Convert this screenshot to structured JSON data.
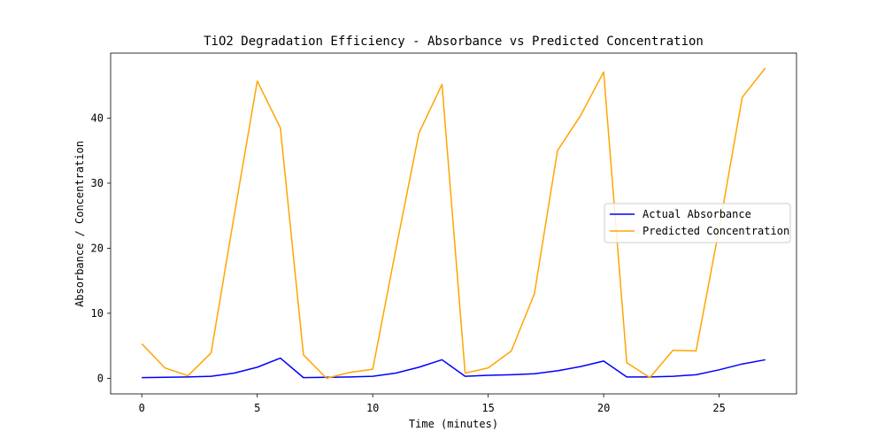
{
  "chart_data": {
    "type": "line",
    "title": "TiO2 Degradation Efficiency - Absorbance vs Predicted Concentration",
    "xlabel": "Time (minutes)",
    "ylabel": "Absorbance / Concentration",
    "xlim": [
      -1.35,
      28.35
    ],
    "ylim": [
      -2.4,
      50.0
    ],
    "x_ticks": [
      0,
      5,
      10,
      15,
      20,
      25
    ],
    "y_ticks": [
      0,
      10,
      20,
      30,
      40
    ],
    "grid": false,
    "legend_position": "center-right",
    "x": [
      0,
      1,
      2,
      3,
      4,
      5,
      6,
      7,
      8,
      9,
      10,
      11,
      12,
      13,
      14,
      15,
      16,
      17,
      18,
      19,
      20,
      21,
      22,
      23,
      24,
      25,
      26,
      27
    ],
    "series": [
      {
        "name": "Actual Absorbance",
        "color": "#0000ff",
        "values": [
          0.1,
          0.15,
          0.2,
          0.3,
          0.8,
          1.7,
          3.1,
          0.1,
          0.15,
          0.2,
          0.3,
          0.8,
          1.7,
          2.85,
          0.3,
          0.45,
          0.55,
          0.7,
          1.15,
          1.8,
          2.65,
          0.2,
          0.2,
          0.3,
          0.55,
          1.3,
          2.2,
          2.85
        ]
      },
      {
        "name": "Predicted Concentration",
        "color": "#ffa500",
        "values": [
          5.3,
          1.6,
          0.4,
          3.9,
          25.0,
          45.7,
          38.5,
          3.6,
          0.0,
          0.9,
          1.4,
          19.8,
          37.7,
          45.2,
          0.8,
          1.6,
          4.2,
          13.0,
          35.0,
          40.4,
          47.1,
          2.4,
          0.1,
          4.3,
          4.2,
          23.0,
          43.2,
          47.7
        ]
      }
    ]
  }
}
